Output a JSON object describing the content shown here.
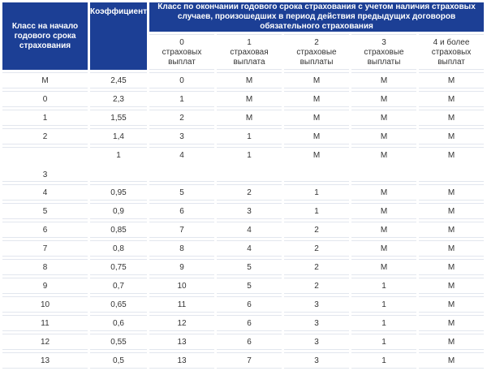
{
  "header": {
    "class_start": "Класс на начало годового срока страхования",
    "coefficient": "Коэффициент",
    "class_end": "Класс по окончании годового срока страхования с учетом наличия страховых случаев, произошедших в период действия предыдущих договоров обязательного страхования",
    "payouts": [
      {
        "num": "0",
        "text": "страховых выплат"
      },
      {
        "num": "1",
        "text": "страховая выплата"
      },
      {
        "num": "2",
        "text": "страховые выплаты"
      },
      {
        "num": "3",
        "text": "страховые выплаты"
      },
      {
        "num": "4 и более",
        "text": "страховых выплат"
      }
    ]
  },
  "rows": [
    [
      "М",
      "2,45",
      "0",
      "М",
      "М",
      "М",
      "М"
    ],
    [
      "0",
      "2,3",
      "1",
      "М",
      "М",
      "М",
      "М"
    ],
    [
      "1",
      "1,55",
      "2",
      "М",
      "М",
      "М",
      "М"
    ],
    [
      "2",
      "1,4",
      "3",
      "1",
      "М",
      "М",
      "М"
    ],
    [
      "3",
      "1",
      "4",
      "1",
      "М",
      "М",
      "М"
    ],
    [
      "4",
      "0,95",
      "5",
      "2",
      "1",
      "М",
      "М"
    ],
    [
      "5",
      "0,9",
      "6",
      "3",
      "1",
      "М",
      "М"
    ],
    [
      "6",
      "0,85",
      "7",
      "4",
      "2",
      "М",
      "М"
    ],
    [
      "7",
      "0,8",
      "8",
      "4",
      "2",
      "М",
      "М"
    ],
    [
      "8",
      "0,75",
      "9",
      "5",
      "2",
      "М",
      "М"
    ],
    [
      "9",
      "0,7",
      "10",
      "5",
      "2",
      "1",
      "М"
    ],
    [
      "10",
      "0,65",
      "11",
      "6",
      "3",
      "1",
      "М"
    ],
    [
      "11",
      "0,6",
      "12",
      "6",
      "3",
      "1",
      "М"
    ],
    [
      "12",
      "0,55",
      "13",
      "6",
      "3",
      "1",
      "М"
    ],
    [
      "13",
      "0,5",
      "13",
      "7",
      "3",
      "1",
      "М"
    ]
  ]
}
